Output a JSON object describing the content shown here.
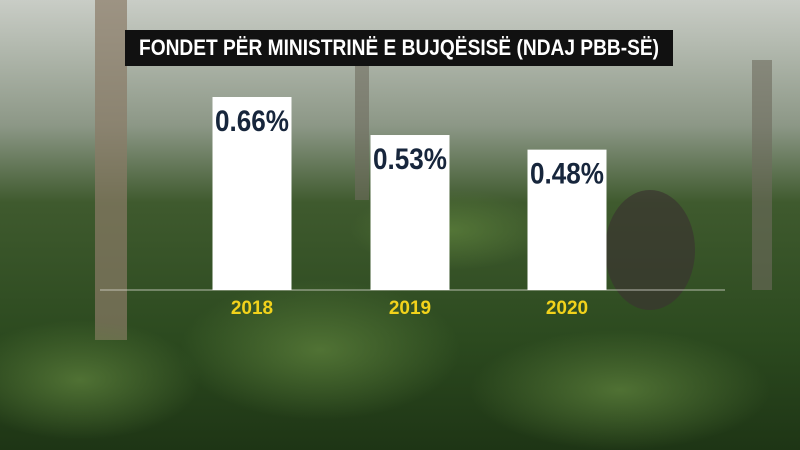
{
  "chart_data": {
    "type": "bar",
    "title": "FONDET PËR MINISTRINË E BUJQËSISË (NDAJ PBB-SË)",
    "categories": [
      "2018",
      "2019",
      "2020"
    ],
    "values": [
      0.66,
      0.53,
      0.48
    ],
    "value_labels": [
      "0.66%",
      "0.53%",
      "0.48%"
    ],
    "color": "#ffffff"
  }
}
